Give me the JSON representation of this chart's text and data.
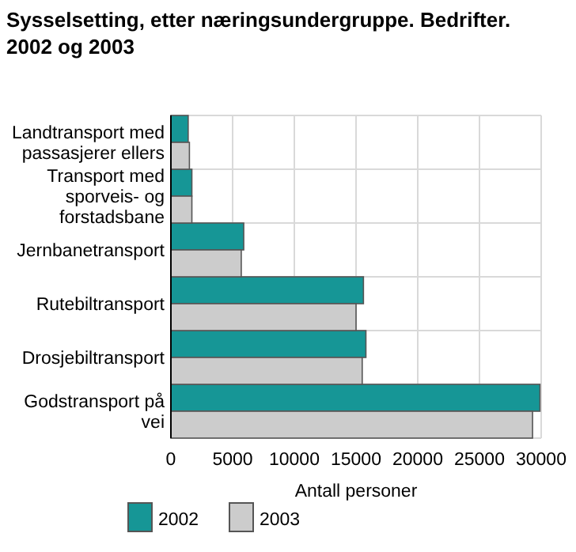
{
  "chart_data": {
    "type": "bar",
    "orientation": "horizontal",
    "title": "Sysselsetting, etter næringsundergruppe. Bedrifter. 2002 og 2003",
    "xlabel": "Antall personer",
    "categories": [
      "Landtransport med passasjerer ellers",
      "Transport med sporveis- og forstadsbane",
      "Jernbanetransport",
      "Rutebiltransport",
      "Drosjebiltransport",
      "Godstransport på vei"
    ],
    "series": [
      {
        "name": "2002",
        "color": "#169696",
        "values": [
          1400,
          1700,
          5900,
          15600,
          15800,
          29900
        ]
      },
      {
        "name": "2003",
        "color": "#cccccc",
        "values": [
          1500,
          1700,
          5700,
          15000,
          15500,
          29300
        ]
      }
    ],
    "xlim": [
      0,
      30000
    ],
    "xticks": [
      0,
      5000,
      10000,
      15000,
      20000,
      25000,
      30000
    ],
    "grid": "x",
    "legend": "bottom"
  }
}
